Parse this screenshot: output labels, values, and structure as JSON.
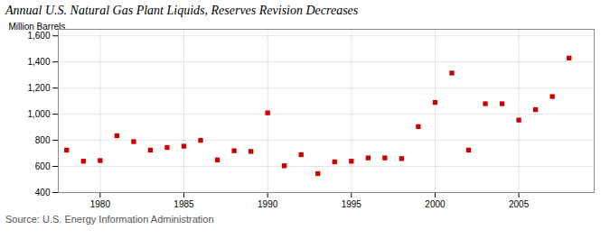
{
  "chart_data": {
    "type": "scatter",
    "title": "Annual U.S. Natural Gas Plant Liquids, Reserves Revision Decreases",
    "ylabel": "Million Barrels",
    "source": "Source: U.S. Energy Information Administration",
    "x": [
      1978,
      1979,
      1980,
      1981,
      1982,
      1983,
      1984,
      1985,
      1986,
      1987,
      1988,
      1989,
      1990,
      1991,
      1992,
      1993,
      1994,
      1995,
      1996,
      1997,
      1998,
      1999,
      2000,
      2001,
      2002,
      2003,
      2004,
      2005,
      2006,
      2007,
      2008
    ],
    "values": [
      725,
      640,
      645,
      835,
      790,
      725,
      745,
      755,
      800,
      650,
      720,
      715,
      1010,
      605,
      690,
      545,
      635,
      640,
      665,
      665,
      660,
      905,
      1090,
      1315,
      725,
      1080,
      1080,
      955,
      1035,
      1135,
      1430
    ],
    "color": "#cc0000",
    "marker": "square",
    "xlim": [
      1977.5,
      2009.5
    ],
    "ylim": [
      400,
      1650
    ],
    "xticks": [
      1980,
      1985,
      1990,
      1995,
      2000,
      2005
    ],
    "yticks": [
      400,
      600,
      800,
      {
        "value": 1000,
        "label": "1,000"
      },
      {
        "value": 1200,
        "label": "1,200"
      },
      {
        "value": 1400,
        "label": "1,400"
      },
      {
        "value": 1600,
        "label": "1,600"
      }
    ],
    "grid": true
  }
}
